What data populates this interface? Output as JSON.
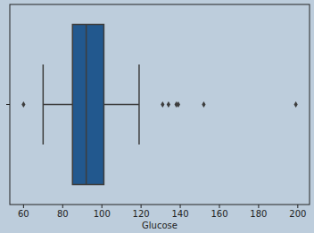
{
  "chart_data": {
    "type": "box",
    "x_label": "Glucose",
    "boxes": [
      {
        "whisker_low": 70,
        "q1": 85,
        "median": 92,
        "q3": 101,
        "whisker_high": 119,
        "outliers": [
          60,
          131,
          134,
          138,
          139,
          152,
          199
        ]
      }
    ],
    "color": "#22588e",
    "xlim": [
      53,
      206
    ],
    "xticks": [
      60,
      80,
      100,
      120,
      140,
      160,
      180,
      200
    ],
    "grid": false,
    "tick_labels": "x"
  }
}
